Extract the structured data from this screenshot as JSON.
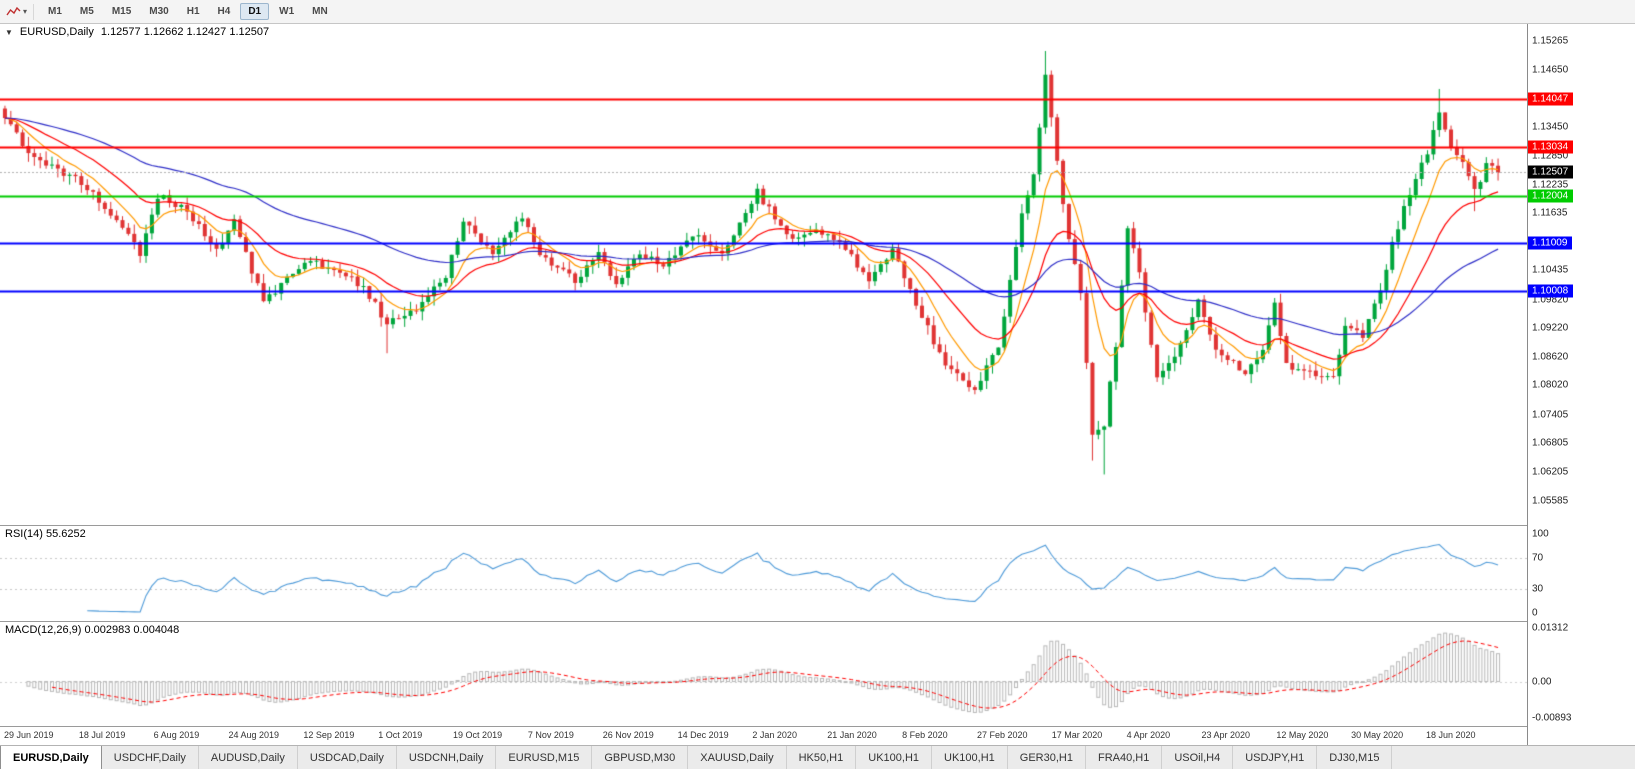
{
  "toolbar": {
    "periods": [
      "M1",
      "M5",
      "M15",
      "M30",
      "H1",
      "H4",
      "D1",
      "W1",
      "MN"
    ],
    "active": "D1"
  },
  "chart": {
    "title": "EURUSD,Daily",
    "quotes": "1.12577 1.12662 1.12427 1.12507"
  },
  "price_axis": {
    "ticks": [
      "1.15265",
      "1.14650",
      "1.13450",
      "1.12850",
      "1.12235",
      "1.11635",
      "1.10435",
      "1.09820",
      "1.09220",
      "1.08620",
      "1.08020",
      "1.07405",
      "1.06805",
      "1.06205",
      "1.05585"
    ]
  },
  "hlines": [
    {
      "value": 1.14047,
      "label": "1.14047",
      "color": "#FF0000"
    },
    {
      "value": 1.13034,
      "label": "1.13034",
      "color": "#FF0000"
    },
    {
      "value": 1.12004,
      "label": "1.12004",
      "color": "#00CC00"
    },
    {
      "value": 1.11009,
      "label": "1.11009",
      "color": "#0000FF"
    },
    {
      "value": 1.10008,
      "label": "1.10008",
      "color": "#0000FF"
    }
  ],
  "current_price": {
    "value": 1.12507,
    "label": "1.12507"
  },
  "rsi": {
    "label": "RSI(14) 55.6252",
    "ticks": [
      "100",
      "70",
      "30",
      "0"
    ]
  },
  "macd": {
    "label": "MACD(12,26,9) 0.002983 0.004048",
    "ticks": [
      "0.01312",
      "0.00",
      "-0.00893"
    ],
    "max": 0.01312,
    "min": -0.00893
  },
  "date_axis": [
    "29 Jun 2019",
    "18 Jul 2019",
    "6 Aug 2019",
    "24 Aug 2019",
    "12 Sep 2019",
    "1 Oct 2019",
    "19 Oct 2019",
    "7 Nov 2019",
    "26 Nov 2019",
    "14 Dec 2019",
    "2 Jan 2020",
    "21 Jan 2020",
    "8 Feb 2020",
    "27 Feb 2020",
    "17 Mar 2020",
    "4 Apr 2020",
    "23 Apr 2020",
    "12 May 2020",
    "30 May 2020",
    "18 Jun 2020"
  ],
  "tabs": [
    "EURUSD,Daily",
    "USDCHF,Daily",
    "AUDUSD,Daily",
    "USDCAD,Daily",
    "USDCNH,Daily",
    "EURUSD,M15",
    "GBPUSD,M30",
    "XAUUSD,Daily",
    "HK50,H1",
    "UK100,H1",
    "UK100,H1",
    "GER30,H1",
    "FRA40,H1",
    "USOil,H4",
    "USDJPY,H1",
    "DJ30,M15"
  ],
  "active_tab": 0,
  "chart_data": {
    "type": "candlestick",
    "symbol": "EURUSD",
    "timeframe": "Daily",
    "candle_count": 255,
    "price_range": {
      "max": 1.1545,
      "min": 1.0525
    },
    "up_color": "#00A63C",
    "down_color": "#E03434",
    "close_anchors": [
      [
        0,
        1.1372
      ],
      [
        4,
        1.1292
      ],
      [
        13,
        1.1228
      ],
      [
        20,
        1.114
      ],
      [
        23,
        1.1082
      ],
      [
        26,
        1.12
      ],
      [
        31,
        1.117
      ],
      [
        36,
        1.109
      ],
      [
        39,
        1.1145
      ],
      [
        44,
        1.0975
      ],
      [
        48,
        1.103
      ],
      [
        52,
        1.1062
      ],
      [
        57,
        1.104
      ],
      [
        61,
        1.101
      ],
      [
        65,
        1.0932
      ],
      [
        70,
        1.0958
      ],
      [
        75,
        1.1035
      ],
      [
        78,
        1.1148
      ],
      [
        83,
        1.1082
      ],
      [
        88,
        1.116
      ],
      [
        91,
        1.1072
      ],
      [
        97,
        1.1022
      ],
      [
        101,
        1.1075
      ],
      [
        104,
        1.102
      ],
      [
        108,
        1.108
      ],
      [
        112,
        1.1055
      ],
      [
        117,
        1.112
      ],
      [
        122,
        1.108
      ],
      [
        128,
        1.1208
      ],
      [
        130,
        1.1172
      ],
      [
        134,
        1.1108
      ],
      [
        138,
        1.113
      ],
      [
        143,
        1.1088
      ],
      [
        147,
        1.1022
      ],
      [
        151,
        1.109
      ],
      [
        156,
        1.0948
      ],
      [
        160,
        1.0842
      ],
      [
        165,
        1.0792
      ],
      [
        169,
        1.0882
      ],
      [
        171,
        1.1026
      ],
      [
        173,
        1.117
      ],
      [
        175,
        1.1242
      ],
      [
        177,
        1.1448
      ],
      [
        179,
        1.127
      ],
      [
        181,
        1.1108
      ],
      [
        183,
        1.0996
      ],
      [
        185,
        1.0692
      ],
      [
        187,
        1.0722
      ],
      [
        189,
        1.0882
      ],
      [
        191,
        1.114
      ],
      [
        193,
        1.1032
      ],
      [
        196,
        1.0812
      ],
      [
        199,
        1.0862
      ],
      [
        203,
        1.098
      ],
      [
        206,
        1.0876
      ],
      [
        208,
        1.0862
      ],
      [
        211,
        1.0822
      ],
      [
        214,
        1.0876
      ],
      [
        216,
        1.0978
      ],
      [
        218,
        1.0842
      ],
      [
        221,
        1.084
      ],
      [
        224,
        1.0816
      ],
      [
        226,
        1.0822
      ],
      [
        228,
        1.0926
      ],
      [
        231,
        1.0902
      ],
      [
        234,
        1.1
      ],
      [
        236,
        1.11
      ],
      [
        238,
        1.1172
      ],
      [
        240,
        1.124
      ],
      [
        242,
        1.1292
      ],
      [
        244,
        1.1376
      ],
      [
        246,
        1.1302
      ],
      [
        248,
        1.1266
      ],
      [
        250,
        1.1212
      ],
      [
        252,
        1.1262
      ],
      [
        254,
        1.1251
      ]
    ],
    "wick_boosts": [
      [
        65,
        0,
        0.005
      ],
      [
        177,
        0.0045,
        0
      ],
      [
        185,
        0,
        0.0035
      ],
      [
        187,
        0,
        0.0084
      ],
      [
        244,
        0.0047,
        0
      ],
      [
        250,
        0,
        0.004
      ]
    ],
    "moving_averages": [
      {
        "name": "ema-fast",
        "period": 8,
        "color": "#FF9A00"
      },
      {
        "name": "ema-mid",
        "period": 20,
        "color": "#FF0000"
      },
      {
        "name": "ema-slow",
        "period": 55,
        "color": "#2E2EC8"
      }
    ],
    "indicators": {
      "rsi": {
        "period": 14,
        "current": 55.6252,
        "color": "#4F9BD9"
      },
      "macd": {
        "fast": 12,
        "slow": 26,
        "signal": 9,
        "value": 0.002983,
        "signal_value": 0.004048,
        "hist_color": "#B8B8B8",
        "signal_color": "#FF0000"
      }
    }
  }
}
